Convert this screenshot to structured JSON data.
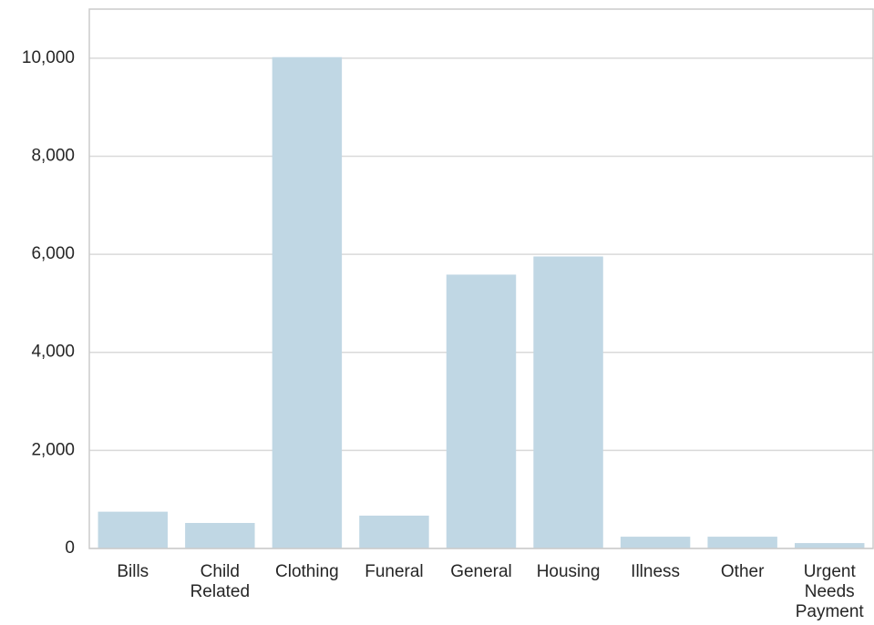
{
  "chart_data": {
    "type": "bar",
    "categories": [
      "Bills",
      "Child Related",
      "Clothing",
      "Funeral",
      "General",
      "Housing",
      "Illness",
      "Other",
      "Urgent Needs Payment"
    ],
    "values": [
      750,
      520,
      10020,
      670,
      5585,
      5955,
      240,
      240,
      110
    ],
    "color": "#c0d7e4",
    "ylim": [
      0,
      11000
    ],
    "yticks": [
      0,
      {
        "value": 2000,
        "label": "2,000"
      },
      {
        "value": 4000,
        "label": "4,000"
      },
      {
        "value": 6000,
        "label": "6,000"
      },
      {
        "value": 8000,
        "label": "8,000"
      },
      {
        "value": 10000,
        "label": "10,000"
      }
    ],
    "grid": true
  }
}
